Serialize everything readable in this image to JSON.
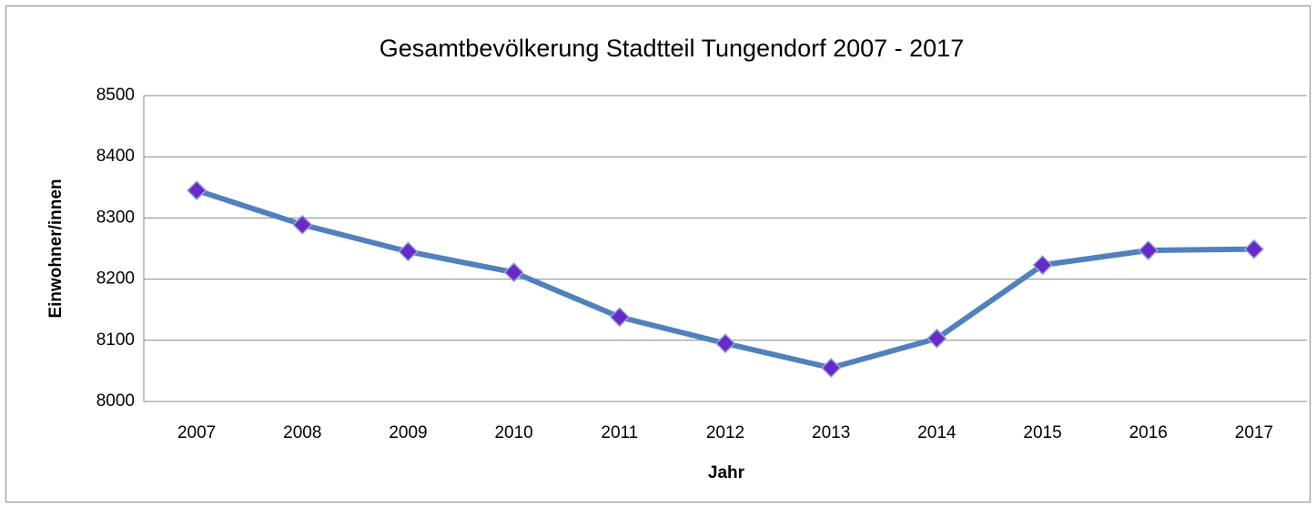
{
  "chart_data": {
    "type": "line",
    "title": "Gesamtbevölkerung Stadtteil Tungendorf 2007 - 2017",
    "x_label": "Jahr",
    "y_label": "Einwohner/innen",
    "categories": [
      "2007",
      "2008",
      "2009",
      "2010",
      "2011",
      "2012",
      "2013",
      "2014",
      "2015",
      "2016",
      "2017"
    ],
    "series": [
      {
        "name": "Einwohner/innen",
        "color": "#4f81bd",
        "marker_color": "#6a28c8",
        "values": [
          8345,
          8289,
          8245,
          8211,
          8138,
          8095,
          8055,
          8103,
          8223,
          8247,
          8249
        ]
      }
    ],
    "ylim": [
      8000,
      8500
    ],
    "yticks": [
      8000,
      8100,
      8200,
      8300,
      8400,
      8500
    ],
    "grid": true
  }
}
